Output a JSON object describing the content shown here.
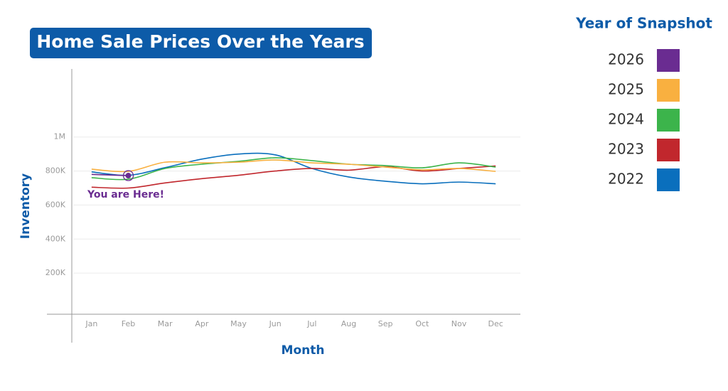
{
  "chart_data": {
    "type": "line",
    "title": "Home Sale Prices Over the Years",
    "x_label": "Month",
    "y_label": "Inventory",
    "legend_title": "Year of Snapshot",
    "annotation": "You are Here!",
    "categories": [
      "Jan",
      "Feb",
      "Mar",
      "Apr",
      "May",
      "Jun",
      "Jul",
      "Aug",
      "Sep",
      "Oct",
      "Nov",
      "Dec"
    ],
    "ylim": [
      0,
      1400000
    ],
    "yticks": [
      {
        "value": 200000,
        "label": "200K"
      },
      {
        "value": 400000,
        "label": "400K"
      },
      {
        "value": 600000,
        "label": "600K"
      },
      {
        "value": 800000,
        "label": "800K"
      },
      {
        "value": 1000000,
        "label": "1M"
      }
    ],
    "grid": true,
    "legend": "right",
    "series": [
      {
        "name": "2026",
        "color": "#6a2c91",
        "values": [
          780000,
          773000,
          null,
          null,
          null,
          null,
          null,
          null,
          null,
          null,
          null,
          null
        ]
      },
      {
        "name": "2025",
        "color": "#f9b040",
        "values": [
          811000,
          798000,
          852000,
          848000,
          852000,
          865000,
          848000,
          840000,
          823000,
          807000,
          815000,
          798000
        ]
      },
      {
        "name": "2024",
        "color": "#3cb44b",
        "values": [
          761000,
          752000,
          815000,
          840000,
          857000,
          878000,
          861000,
          840000,
          832000,
          819000,
          848000,
          823000
        ]
      },
      {
        "name": "2023",
        "color": "#c1272d",
        "values": [
          705000,
          700000,
          730000,
          755000,
          775000,
          800000,
          815000,
          805000,
          825000,
          800000,
          815000,
          830000
        ]
      },
      {
        "name": "2022",
        "color": "#0a6fbd",
        "values": [
          795000,
          775000,
          820000,
          870000,
          900000,
          895000,
          815000,
          765000,
          740000,
          725000,
          735000,
          725000
        ]
      }
    ]
  }
}
